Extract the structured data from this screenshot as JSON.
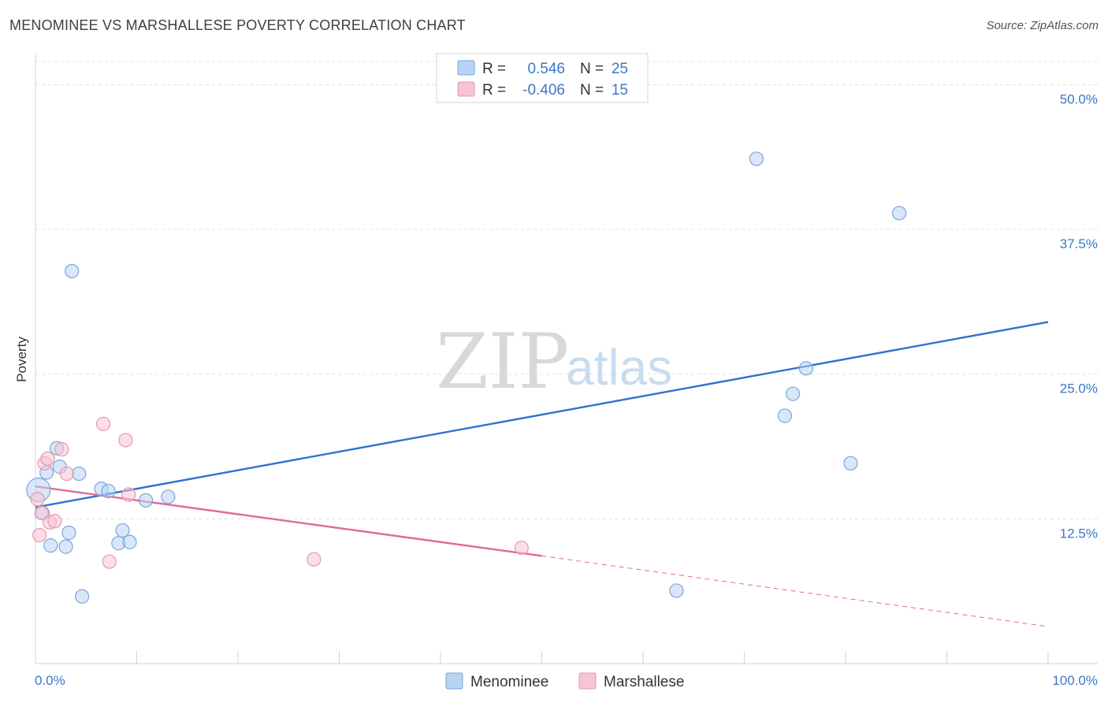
{
  "title": "MENOMINEE VS MARSHALLESE POVERTY CORRELATION CHART",
  "source": "Source: ZipAtlas.com",
  "watermark": {
    "zip": "ZIP",
    "atlas": "atlas"
  },
  "colors": {
    "blue_fill": "#b9d3f2",
    "blue_stroke": "#7aa6dd",
    "blue_line": "#2f72cf",
    "pink_fill": "#f8c3d3",
    "pink_stroke": "#e897b1",
    "pink_line": "#e06a96",
    "grid": "#dde1e6",
    "axis_text": "#3a78c6"
  },
  "legend": {
    "rows": [
      {
        "r_label": "R =",
        "r_value": "0.546",
        "n_label": "N =",
        "n_value": "25",
        "series": "Menominee"
      },
      {
        "r_label": "R =",
        "r_value": "-0.406",
        "n_label": "N =",
        "n_value": "15",
        "series": "Marshallese"
      }
    ]
  },
  "chart_data": {
    "type": "scatter",
    "title": "MENOMINEE VS MARSHALLESE POVERTY CORRELATION CHART",
    "xlabel": "",
    "ylabel": "Poverty",
    "xlim": [
      0,
      100
    ],
    "ylim": [
      0,
      52
    ],
    "x_tick_labels": [
      "0.0%",
      "100.0%"
    ],
    "y_ticks": [
      12.5,
      25.0,
      37.5,
      50.0
    ],
    "y_tick_labels": [
      "12.5%",
      "25.0%",
      "37.5%",
      "50.0%"
    ],
    "grid": true,
    "series": [
      {
        "name": "Menominee",
        "color": "blue",
        "points": [
          {
            "x": 0.3,
            "y": 15.0,
            "size": "large"
          },
          {
            "x": 0.7,
            "y": 13.0
          },
          {
            "x": 1.1,
            "y": 16.5
          },
          {
            "x": 1.5,
            "y": 10.2
          },
          {
            "x": 2.1,
            "y": 18.6
          },
          {
            "x": 2.4,
            "y": 17.0
          },
          {
            "x": 3.0,
            "y": 10.1
          },
          {
            "x": 3.3,
            "y": 11.3
          },
          {
            "x": 3.6,
            "y": 33.9
          },
          {
            "x": 4.3,
            "y": 16.4
          },
          {
            "x": 4.6,
            "y": 5.8
          },
          {
            "x": 6.5,
            "y": 15.1
          },
          {
            "x": 7.2,
            "y": 14.9
          },
          {
            "x": 8.2,
            "y": 10.4
          },
          {
            "x": 8.6,
            "y": 11.5
          },
          {
            "x": 9.3,
            "y": 10.5
          },
          {
            "x": 10.9,
            "y": 14.1
          },
          {
            "x": 13.1,
            "y": 14.4
          },
          {
            "x": 63.3,
            "y": 6.3
          },
          {
            "x": 71.2,
            "y": 43.6
          },
          {
            "x": 74.0,
            "y": 21.4
          },
          {
            "x": 74.8,
            "y": 23.3
          },
          {
            "x": 76.1,
            "y": 25.5
          },
          {
            "x": 80.5,
            "y": 17.3
          },
          {
            "x": 85.3,
            "y": 38.9
          }
        ]
      },
      {
        "name": "Marshallese",
        "color": "pink",
        "points": [
          {
            "x": 0.2,
            "y": 14.2
          },
          {
            "x": 0.4,
            "y": 11.1
          },
          {
            "x": 0.6,
            "y": 13.0
          },
          {
            "x": 0.9,
            "y": 17.3
          },
          {
            "x": 1.2,
            "y": 17.7
          },
          {
            "x": 1.4,
            "y": 12.2
          },
          {
            "x": 1.9,
            "y": 12.3
          },
          {
            "x": 2.6,
            "y": 18.5
          },
          {
            "x": 3.1,
            "y": 16.4
          },
          {
            "x": 6.7,
            "y": 20.7
          },
          {
            "x": 7.3,
            "y": 8.8
          },
          {
            "x": 8.9,
            "y": 19.3
          },
          {
            "x": 9.2,
            "y": 14.6
          },
          {
            "x": 27.5,
            "y": 9.0
          },
          {
            "x": 48.0,
            "y": 10.0
          }
        ]
      }
    ],
    "trend_lines": [
      {
        "series": "Menominee",
        "x_start": 0,
        "y_start": 13.5,
        "x_end": 100,
        "y_end": 29.5,
        "style": "solid"
      },
      {
        "series": "Marshallese",
        "x_start": 0,
        "y_start": 15.3,
        "x_end": 50,
        "y_end": 9.3,
        "style": "solid"
      },
      {
        "series": "Marshallese",
        "x_start": 50,
        "y_start": 9.3,
        "x_end": 100,
        "y_end": 3.2,
        "style": "dashed"
      }
    ]
  }
}
